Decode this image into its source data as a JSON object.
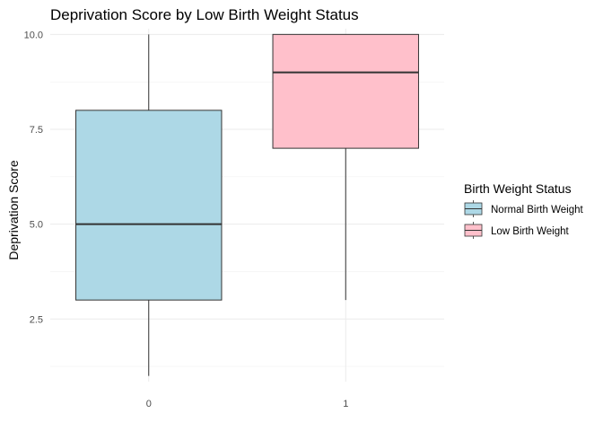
{
  "chart_data": {
    "type": "boxplot",
    "title": "Deprivation Score by Low Birth Weight Status",
    "xlabel": "",
    "ylabel": "Deprivation Score",
    "categories": [
      "0",
      "1"
    ],
    "ylim": [
      0.85,
      10.15
    ],
    "yticks": [
      2.5,
      5.0,
      7.5,
      10.0
    ],
    "ytick_labels": [
      "2.5",
      "5.0",
      "7.5",
      "10.0"
    ],
    "grid": true,
    "legend": {
      "title": "Birth Weight Status",
      "position": "right",
      "entries": [
        {
          "label": "Normal Birth Weight",
          "color": "#ADD8E6"
        },
        {
          "label": "Low Birth Weight",
          "color": "#FFC0CB"
        }
      ]
    },
    "series": [
      {
        "category": "0",
        "min": 1,
        "q1": 3,
        "median": 5,
        "q3": 8,
        "max": 10,
        "color": "#ADD8E6"
      },
      {
        "category": "1",
        "min": 3,
        "q1": 7,
        "median": 9,
        "q3": 10,
        "max": 10,
        "color": "#FFC0CB"
      }
    ]
  }
}
